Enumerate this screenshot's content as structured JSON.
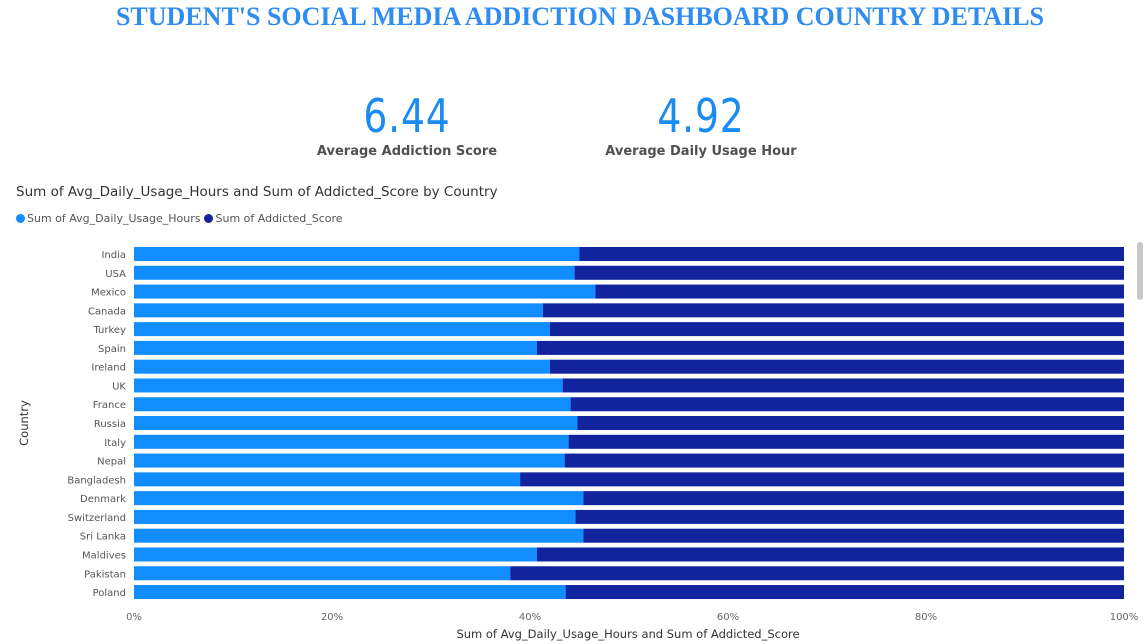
{
  "page": {
    "title": "STUDENT'S SOCIAL MEDIA ADDICTION DASHBOARD COUNTRY DETAILS"
  },
  "kpis": [
    {
      "value": "6.44",
      "label": "Average Addiction Score"
    },
    {
      "value": "4.92",
      "label": "Average Daily Usage Hour"
    }
  ],
  "colors": {
    "title": "#2f8cf0",
    "series_1": "#118dff",
    "series_2": "#12239e"
  },
  "chart_data": {
    "type": "bar",
    "orientation": "horizontal",
    "stacking": "100%",
    "title": "Sum of Avg_Daily_Usage_Hours and Sum of Addicted_Score by Country",
    "xlabel": "Sum of Avg_Daily_Usage_Hours and Sum of Addicted_Score",
    "ylabel": "Country",
    "categories": [
      "India",
      "USA",
      "Mexico",
      "Canada",
      "Turkey",
      "Spain",
      "Ireland",
      "UK",
      "France",
      "Russia",
      "Italy",
      "Nepal",
      "Bangladesh",
      "Denmark",
      "Switzerland",
      "Sri Lanka",
      "Maldives",
      "Pakistan",
      "Poland"
    ],
    "series": [
      {
        "name": "Sum of Avg_Daily_Usage_Hours",
        "color": "#118dff",
        "values": [
          45,
          44.5,
          46.6,
          41.3,
          42,
          40.7,
          42,
          43.3,
          44.1,
          44.8,
          43.9,
          43.5,
          39,
          45.4,
          44.6,
          45.4,
          40.7,
          38,
          43.6
        ]
      },
      {
        "name": "Sum of Addicted_Score",
        "color": "#12239e",
        "values": [
          55,
          55.5,
          53.4,
          58.7,
          58,
          59.3,
          58,
          56.7,
          55.9,
          55.2,
          56.1,
          56.5,
          61,
          54.6,
          55.4,
          54.6,
          59.3,
          62,
          56.4
        ]
      }
    ],
    "x_ticks": [
      "0%",
      "20%",
      "40%",
      "60%",
      "80%",
      "100%"
    ],
    "xlim": [
      0,
      100
    ],
    "legend_position": "top-left",
    "grid": false
  }
}
